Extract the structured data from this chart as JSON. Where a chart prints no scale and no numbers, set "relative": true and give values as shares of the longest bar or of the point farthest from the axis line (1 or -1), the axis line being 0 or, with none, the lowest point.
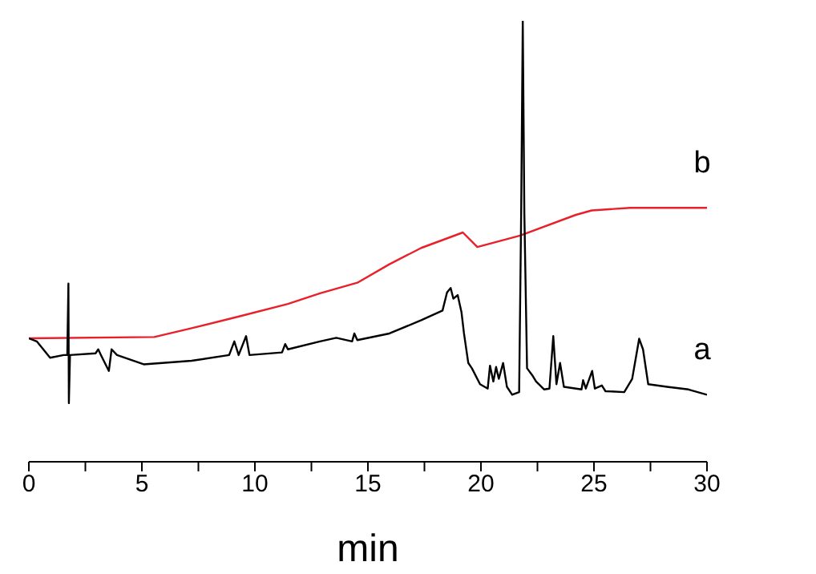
{
  "chart_data": {
    "type": "line",
    "relative": true,
    "xlabel": "min",
    "xlim": [
      0,
      30
    ],
    "xticks": [
      0,
      {
        "value": 2.5,
        "label": null
      },
      5,
      {
        "value": 7.5,
        "label": null
      },
      10,
      {
        "value": 12.5,
        "label": null
      },
      15,
      {
        "value": 17.5,
        "label": null
      },
      20,
      {
        "value": 22.5,
        "label": null
      },
      25,
      {
        "value": 27.5,
        "label": null
      },
      30
    ],
    "series": [
      {
        "name": "b",
        "color": "#e8202a",
        "x": [
          0,
          5.55,
          7.2,
          9.33,
          11.46,
          12.88,
          14.53,
          15.95,
          17.36,
          19.2,
          19.84,
          21.73,
          24.2,
          24.9,
          26.6,
          30
        ],
        "values": [
          0.28,
          0.283,
          0.303,
          0.33,
          0.358,
          0.382,
          0.406,
          0.448,
          0.485,
          0.52,
          0.487,
          0.513,
          0.56,
          0.57,
          0.576,
          0.576
        ]
      },
      {
        "name": "a",
        "color": "#000000",
        "x": [
          0,
          0.35,
          0.94,
          1.54,
          1.7,
          1.75,
          1.77,
          1.82,
          2.95,
          3.07,
          3.19,
          3.54,
          3.66,
          3.9,
          5.08,
          7.2,
          8.86,
          9.09,
          9.28,
          9.61,
          9.76,
          11.2,
          11.34,
          11.46,
          12.88,
          13.6,
          14.3,
          14.4,
          14.53,
          15.95,
          17.36,
          18.3,
          18.5,
          18.66,
          18.78,
          18.97,
          19.14,
          19.25,
          19.44,
          19.6,
          19.96,
          20.3,
          20.4,
          20.55,
          20.67,
          20.79,
          20.98,
          21.15,
          21.38,
          21.69,
          21.78,
          21.85,
          21.92,
          22.04,
          22.3,
          22.44,
          22.8,
          23.03,
          23.2,
          23.34,
          23.5,
          23.67,
          24.45,
          24.52,
          24.64,
          24.92,
          25.04,
          25.35,
          25.51,
          26.34,
          26.69,
          27.0,
          27.17,
          27.4,
          28.23,
          29.18,
          30
        ],
        "values": [
          0.28,
          0.273,
          0.236,
          0.242,
          0.242,
          0.404,
          0.133,
          0.242,
          0.246,
          0.255,
          0.242,
          0.206,
          0.255,
          0.242,
          0.221,
          0.229,
          0.242,
          0.273,
          0.242,
          0.285,
          0.242,
          0.248,
          0.267,
          0.255,
          0.273,
          0.281,
          0.273,
          0.291,
          0.276,
          0.291,
          0.321,
          0.343,
          0.384,
          0.394,
          0.37,
          0.378,
          0.339,
          0.291,
          0.224,
          0.212,
          0.176,
          0.166,
          0.218,
          0.182,
          0.215,
          0.188,
          0.224,
          0.17,
          0.152,
          0.158,
          0.564,
          1.0,
          0.564,
          0.212,
          0.194,
          0.182,
          0.164,
          0.166,
          0.285,
          0.176,
          0.224,
          0.17,
          0.164,
          0.185,
          0.166,
          0.206,
          0.166,
          0.173,
          0.16,
          0.158,
          0.188,
          0.279,
          0.255,
          0.176,
          0.17,
          0.164,
          0.152
        ]
      }
    ]
  }
}
